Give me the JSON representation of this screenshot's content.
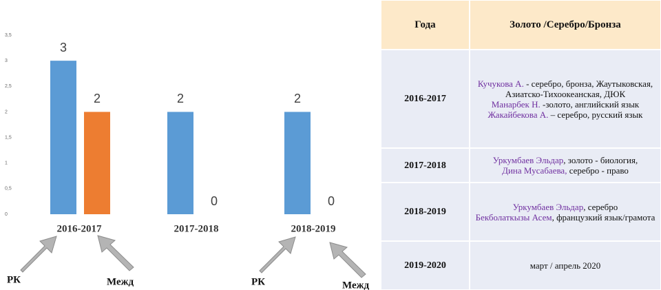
{
  "chart_data": {
    "type": "bar",
    "categories": [
      "2016-2017",
      "2017-2018",
      "2018-2019"
    ],
    "series": [
      {
        "color": "#5b9bd5",
        "values": [
          3,
          2,
          2
        ]
      },
      {
        "color": "#ed7d31",
        "values": [
          2,
          0,
          0
        ]
      }
    ],
    "ylim": [
      0,
      3.5
    ],
    "yticks": [
      0,
      {
        "value": 0.5,
        "label": "0,5"
      },
      1,
      {
        "value": 1.5,
        "label": "1,5"
      },
      2,
      {
        "value": 2.5,
        "label": "2,5"
      },
      3,
      {
        "value": 3.5,
        "label": "3,5"
      }
    ],
    "grid": false,
    "annotations": [
      "РК",
      "Межд",
      "РК",
      "Межд"
    ]
  },
  "table": {
    "header": [
      "Года",
      "Золото /Серебро/Бронза"
    ],
    "rows": [
      {
        "year": "2016-2017",
        "details": [
          {
            "name": "Кучукова А.",
            "text": " - серебро, бронза, Жаутыковская, Азиатско-Тихоокеанская, ДЮК"
          },
          {
            "name": "Манарбек Н.",
            "text": " -золото, английский язык"
          },
          {
            "name": "Жакайбекова А.",
            "text": " – серебро, русский язык"
          }
        ]
      },
      {
        "year": "2017-2018",
        "details": [
          {
            "name": "Уркумбаев Эльдар",
            "text": ", золото - биология,"
          },
          {
            "name": "Дина Мусабаева,",
            "text": " серебро - право"
          }
        ]
      },
      {
        "year": "2018-2019",
        "details": [
          {
            "name": "Уркумбаев Эльдар",
            "text": ", серебро"
          },
          {
            "name": "Бекболаткызы Асем",
            "text": ", французкий язык/грамота"
          }
        ]
      },
      {
        "year": "2019-2020",
        "details": [
          {
            "text": "март / апрель  2020"
          }
        ]
      }
    ]
  }
}
